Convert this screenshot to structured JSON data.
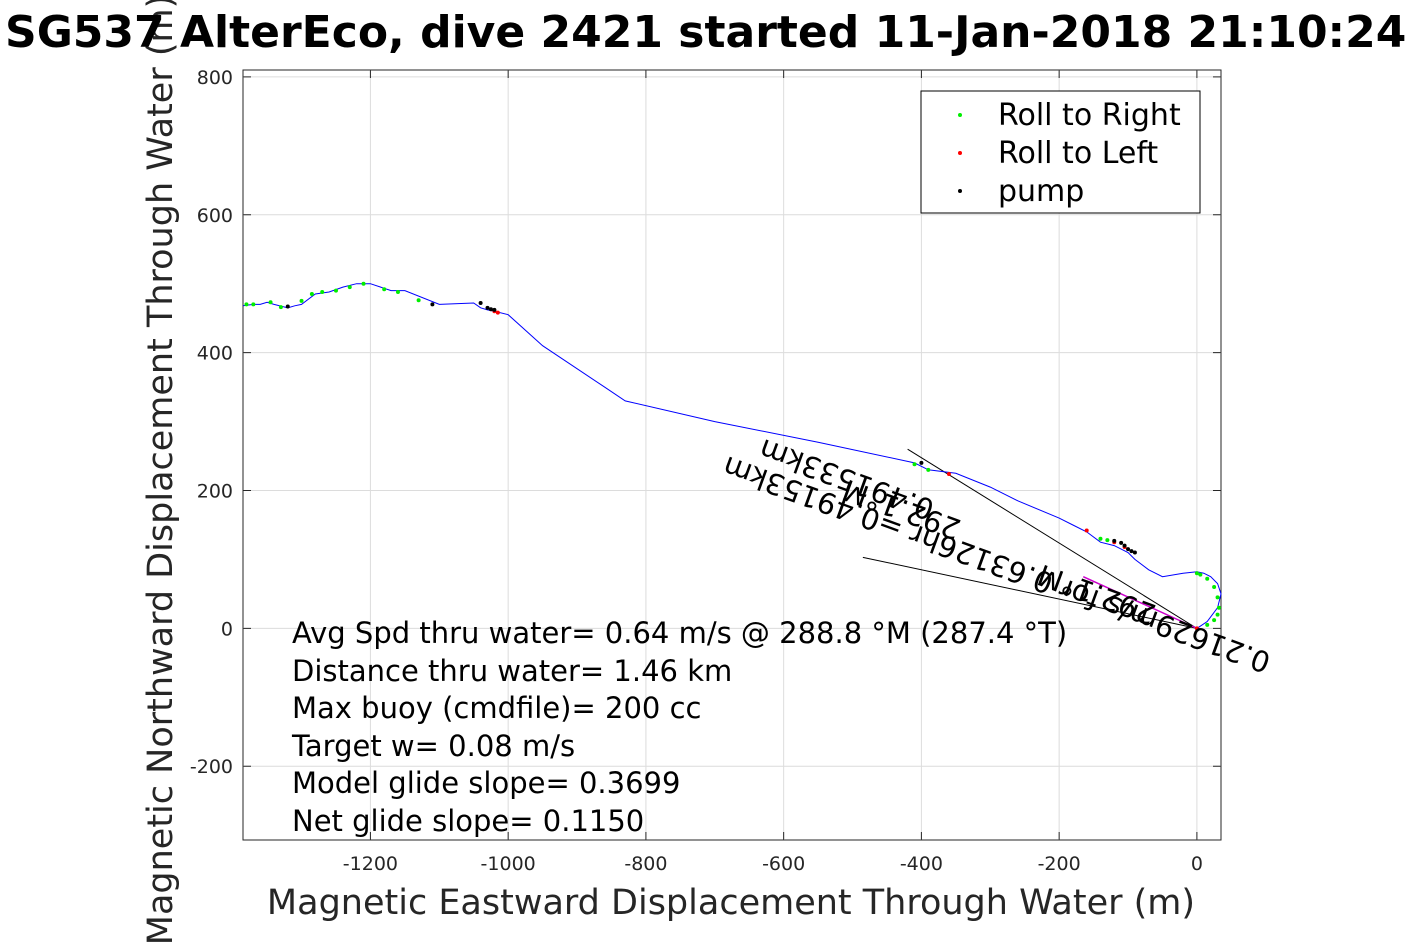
{
  "chart_data": {
    "type": "line",
    "title": "SG537 AlterEco, dive 2421 started 11-Jan-2018 21:10:24",
    "xlabel": "Magnetic Eastward Displacement Through Water (m)",
    "ylabel": "Magnetic Northward Displacement Through Water (m)",
    "xlim": [
      -1385,
      35
    ],
    "ylim": [
      -307,
      810
    ],
    "xticks": [
      -1200,
      -1000,
      -800,
      -600,
      -400,
      -200,
      0
    ],
    "yticks": [
      -200,
      0,
      200,
      400,
      600,
      800
    ],
    "grid": true,
    "legend_position": "top-right",
    "legend": [
      {
        "name": "Roll to Right",
        "color": "#00ee00"
      },
      {
        "name": "Roll to Left",
        "color": "#ff0000"
      },
      {
        "name": "pump",
        "color": "#000000"
      }
    ],
    "colors": {
      "track": "#0000ff",
      "current": "#cc00cc",
      "lines": "#000000"
    },
    "track": {
      "x": [
        0,
        15,
        30,
        35,
        30,
        20,
        10,
        0,
        -20,
        -50,
        -70,
        -90,
        -100,
        -110,
        -120,
        -140,
        -160,
        -180,
        -200,
        -260,
        -300,
        -350,
        -390,
        -410,
        -550,
        -700,
        -830,
        -860,
        -950,
        -1000,
        -1020,
        -1030,
        -1040,
        -1050,
        -1100,
        -1150,
        -1170,
        -1200,
        -1220,
        -1240,
        -1260,
        -1280,
        -1300,
        -1310,
        -1320,
        -1340,
        -1350,
        -1360,
        -1370,
        -1385
      ],
      "y": [
        0,
        10,
        30,
        50,
        65,
        75,
        80,
        82,
        80,
        75,
        85,
        100,
        110,
        115,
        120,
        125,
        140,
        150,
        160,
        185,
        205,
        225,
        230,
        240,
        270,
        300,
        330,
        350,
        410,
        455,
        460,
        462,
        465,
        472,
        470,
        490,
        490,
        500,
        500,
        495,
        488,
        485,
        470,
        468,
        465,
        470,
        473,
        470,
        470,
        468
      ]
    },
    "current_vector": {
      "x": [
        0,
        -165
      ],
      "y": [
        0,
        75
      ]
    },
    "vector_lines": [
      {
        "x": [
          0,
          -420
        ],
        "y": [
          0,
          260
        ]
      },
      {
        "x": [
          0,
          -485
        ],
        "y": [
          0,
          103
        ]
      }
    ],
    "roll_right": {
      "x": [
        -1380,
        -1370,
        -1345,
        -1330,
        -1300,
        -1285,
        -1270,
        -1250,
        -1230,
        -1210,
        -1180,
        -1160,
        -1130,
        -410,
        -390,
        -140,
        -130,
        0,
        5,
        15,
        25,
        30,
        32,
        30,
        25,
        15
      ],
      "y": [
        470,
        470,
        473,
        466,
        475,
        485,
        488,
        490,
        495,
        500,
        492,
        488,
        476,
        238,
        230,
        130,
        128,
        80,
        78,
        72,
        60,
        45,
        30,
        20,
        12,
        5
      ]
    },
    "roll_left": {
      "x": [
        -1015,
        -1020,
        -360,
        -160,
        -120,
        -105,
        0
      ],
      "y": [
        458,
        460,
        224,
        142,
        125,
        118,
        0
      ]
    },
    "pump": {
      "x": [
        -1320,
        -1110,
        -1040,
        -1030,
        -1025,
        -1020,
        -120,
        -110,
        -105,
        -100,
        -95,
        -90,
        -400
      ],
      "y": [
        467,
        470,
        472,
        465,
        463,
        462,
        127,
        124,
        120,
        115,
        112,
        110,
        240
      ]
    },
    "rotated_annotations": [
      "0.491533km",
      "0.21629m/s for 0.63126hr =0.49153km",
      "292.1°M",
      "292.1°M"
    ],
    "annotations": [
      "Avg Spd thru water=  0.64 m/s @ 288.8 °M (287.4 °T)",
      "Distance thru water=  1.46 km",
      "Max buoy (cmdfile)= 200 cc",
      "Target w= 0.08 m/s",
      "Model glide slope= 0.3699",
      "Net glide slope= 0.1150"
    ]
  }
}
